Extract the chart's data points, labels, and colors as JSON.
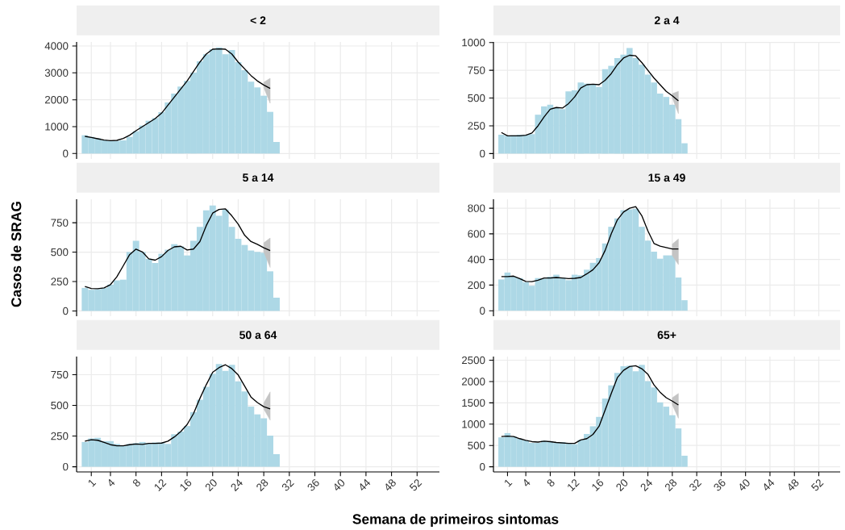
{
  "chart_data": [
    {
      "type": "bar",
      "title": "< 2",
      "x": [
        0,
        1,
        2,
        3,
        4,
        5,
        6,
        7,
        8,
        9,
        10,
        11,
        12,
        13,
        14,
        15,
        16,
        17,
        18,
        19,
        20,
        21,
        22,
        23,
        24,
        25,
        26,
        27,
        28,
        29,
        30
      ],
      "xlim": [
        -1.3,
        55.5
      ],
      "xticks": [
        1,
        4,
        8,
        12,
        16,
        20,
        24,
        28,
        32,
        36,
        40,
        44,
        48,
        52
      ],
      "ylim": [
        -200,
        4150
      ],
      "yticks": [
        0,
        1000,
        2000,
        3000,
        4000
      ],
      "tick_labels": "y",
      "grid": true,
      "series": [
        {
          "color": "#add8e6",
          "values": [
            680,
            620,
            570,
            500,
            470,
            470,
            490,
            620,
            830,
            1040,
            1220,
            1320,
            1540,
            1900,
            2230,
            2490,
            2700,
            3010,
            3430,
            3690,
            3880,
            3950,
            3690,
            3850,
            3400,
            3100,
            2670,
            2460,
            2150,
            1550,
            430
          ]
        },
        {
          "type": "line",
          "color": "#000000",
          "x": [
            0,
            1,
            2,
            3,
            4,
            5,
            6,
            7,
            8,
            9,
            10,
            11,
            12,
            13,
            14,
            15,
            16,
            17,
            18,
            19,
            20,
            21,
            22,
            23,
            24,
            25,
            26,
            27,
            28,
            29
          ],
          "values": [
            640,
            600,
            550,
            500,
            480,
            490,
            560,
            680,
            850,
            1000,
            1150,
            1300,
            1500,
            1800,
            2100,
            2400,
            2700,
            3050,
            3400,
            3700,
            3880,
            3890,
            3880,
            3700,
            3400,
            3150,
            2900,
            2700,
            2550,
            2420
          ],
          "lower": [
            null,
            null,
            null,
            null,
            null,
            null,
            null,
            null,
            null,
            null,
            null,
            null,
            null,
            null,
            null,
            null,
            null,
            null,
            null,
            null,
            null,
            null,
            null,
            null,
            null,
            null,
            null,
            null,
            2450,
            1870
          ],
          "upper": [
            null,
            null,
            null,
            null,
            null,
            null,
            null,
            null,
            null,
            null,
            null,
            null,
            null,
            null,
            null,
            null,
            null,
            null,
            null,
            null,
            null,
            null,
            null,
            null,
            null,
            null,
            null,
            null,
            2650,
            2800
          ]
        }
      ]
    },
    {
      "type": "bar",
      "title": "2 a 4",
      "x": [
        0,
        1,
        2,
        3,
        4,
        5,
        6,
        7,
        8,
        9,
        10,
        11,
        12,
        13,
        14,
        15,
        16,
        17,
        18,
        19,
        20,
        21,
        22,
        23,
        24,
        25,
        26,
        27,
        28,
        29,
        30
      ],
      "xlim": [
        -1.3,
        55.5
      ],
      "xticks": [
        1,
        4,
        8,
        12,
        16,
        20,
        24,
        28,
        32,
        36,
        40,
        44,
        48,
        52
      ],
      "ylim": [
        -48,
        1005
      ],
      "yticks": [
        0,
        250,
        500,
        750,
        1000
      ],
      "tick_labels": "y",
      "grid": true,
      "series": [
        {
          "color": "#add8e6",
          "values": [
            170,
            160,
            165,
            170,
            170,
            175,
            350,
            425,
            440,
            410,
            400,
            560,
            570,
            640,
            630,
            620,
            600,
            760,
            790,
            860,
            890,
            950,
            860,
            800,
            710,
            640,
            540,
            510,
            440,
            310,
            93
          ]
        },
        {
          "type": "line",
          "color": "#000000",
          "x": [
            0,
            1,
            2,
            3,
            4,
            5,
            6,
            7,
            8,
            9,
            10,
            11,
            12,
            13,
            14,
            15,
            16,
            17,
            18,
            19,
            20,
            21,
            22,
            23,
            24,
            25,
            26,
            27,
            28,
            29
          ],
          "values": [
            190,
            160,
            160,
            160,
            165,
            185,
            250,
            330,
            400,
            415,
            410,
            450,
            510,
            590,
            620,
            625,
            620,
            660,
            720,
            800,
            860,
            885,
            880,
            820,
            750,
            680,
            620,
            560,
            520,
            475
          ],
          "lower": [
            null,
            null,
            null,
            null,
            null,
            null,
            null,
            null,
            null,
            null,
            null,
            null,
            null,
            null,
            null,
            null,
            null,
            null,
            null,
            null,
            null,
            null,
            null,
            null,
            null,
            null,
            null,
            null,
            500,
            360
          ],
          "upper": [
            null,
            null,
            null,
            null,
            null,
            null,
            null,
            null,
            null,
            null,
            null,
            null,
            null,
            null,
            null,
            null,
            null,
            null,
            null,
            null,
            null,
            null,
            null,
            null,
            null,
            null,
            null,
            null,
            540,
            560
          ]
        }
      ]
    },
    {
      "type": "bar",
      "title": "5 a 14",
      "ylabel": "Casos de SRAG",
      "x": [
        0,
        1,
        2,
        3,
        4,
        5,
        6,
        7,
        8,
        9,
        10,
        11,
        12,
        13,
        14,
        15,
        16,
        17,
        18,
        19,
        20,
        21,
        22,
        23,
        24,
        25,
        26,
        27,
        28,
        29,
        30
      ],
      "xlim": [
        -1.3,
        55.5
      ],
      "xticks": [
        1,
        4,
        8,
        12,
        16,
        20,
        24,
        28,
        32,
        36,
        40,
        44,
        48,
        52
      ],
      "ylim": [
        -45,
        950
      ],
      "yticks": [
        0,
        250,
        500,
        750
      ],
      "tick_labels": "y",
      "grid": true,
      "series": [
        {
          "color": "#add8e6",
          "values": [
            196,
            180,
            184,
            196,
            224,
            260,
            266,
            502,
            597,
            502,
            443,
            408,
            486,
            521,
            568,
            550,
            472,
            597,
            715,
            856,
            896,
            809,
            863,
            715,
            613,
            561,
            514,
            502,
            495,
            337,
            113
          ]
        },
        {
          "type": "line",
          "color": "#000000",
          "x": [
            0,
            1,
            2,
            3,
            4,
            5,
            6,
            7,
            8,
            9,
            10,
            11,
            12,
            13,
            14,
            15,
            16,
            17,
            18,
            19,
            20,
            21,
            22,
            23,
            24,
            25,
            26,
            27,
            28,
            29
          ],
          "values": [
            208,
            191,
            189,
            196,
            224,
            290,
            384,
            479,
            526,
            502,
            443,
            432,
            462,
            514,
            545,
            550,
            519,
            526,
            590,
            726,
            832,
            863,
            868,
            809,
            738,
            644,
            590,
            566,
            538,
            514
          ],
          "lower": [
            null,
            null,
            null,
            null,
            null,
            null,
            null,
            null,
            null,
            null,
            null,
            null,
            null,
            null,
            null,
            null,
            null,
            null,
            null,
            null,
            null,
            null,
            null,
            null,
            null,
            null,
            null,
            null,
            500,
            370
          ],
          "upper": [
            null,
            null,
            null,
            null,
            null,
            null,
            null,
            null,
            null,
            null,
            null,
            null,
            null,
            null,
            null,
            null,
            null,
            null,
            null,
            null,
            null,
            null,
            null,
            null,
            null,
            null,
            null,
            null,
            580,
            620
          ]
        }
      ]
    },
    {
      "type": "bar",
      "title": "15 a 49",
      "x": [
        0,
        1,
        2,
        3,
        4,
        5,
        6,
        7,
        8,
        9,
        10,
        11,
        12,
        13,
        14,
        15,
        16,
        17,
        18,
        19,
        20,
        21,
        22,
        23,
        24,
        25,
        26,
        27,
        28,
        29,
        30
      ],
      "xlim": [
        -1.3,
        55.5
      ],
      "xticks": [
        1,
        4,
        8,
        12,
        16,
        20,
        24,
        28,
        32,
        36,
        40,
        44,
        48,
        52
      ],
      "ylim": [
        -43,
        870
      ],
      "yticks": [
        0,
        200,
        400,
        600,
        800
      ],
      "tick_labels": "y",
      "grid": true,
      "series": [
        {
          "color": "#add8e6",
          "values": [
            244,
            298,
            266,
            255,
            223,
            195,
            255,
            251,
            266,
            281,
            259,
            238,
            281,
            277,
            320,
            374,
            411,
            525,
            655,
            720,
            785,
            791,
            796,
            655,
            547,
            461,
            406,
            432,
            432,
            259,
            82
          ]
        },
        {
          "type": "line",
          "color": "#000000",
          "x": [
            0,
            1,
            2,
            3,
            4,
            5,
            6,
            7,
            8,
            9,
            10,
            11,
            12,
            13,
            14,
            15,
            16,
            17,
            18,
            19,
            20,
            21,
            22,
            23,
            24,
            25,
            26,
            27,
            28,
            29
          ],
          "values": [
            266,
            266,
            270,
            251,
            229,
            227,
            238,
            255,
            255,
            259,
            255,
            251,
            253,
            259,
            288,
            320,
            374,
            471,
            601,
            709,
            770,
            800,
            813,
            742,
            623,
            525,
            504,
            493,
            482,
            482
          ],
          "lower": [
            null,
            null,
            null,
            null,
            null,
            null,
            null,
            null,
            null,
            null,
            null,
            null,
            null,
            null,
            null,
            null,
            null,
            null,
            null,
            null,
            null,
            null,
            null,
            null,
            null,
            null,
            null,
            null,
            430,
            360
          ],
          "upper": [
            null,
            null,
            null,
            null,
            null,
            null,
            null,
            null,
            null,
            null,
            null,
            null,
            null,
            null,
            null,
            null,
            null,
            null,
            null,
            null,
            null,
            null,
            null,
            null,
            null,
            null,
            null,
            null,
            520,
            560
          ]
        }
      ]
    },
    {
      "type": "bar",
      "title": "50 a 64",
      "xlabel": "Semana de primeiros sintomas",
      "x": [
        0,
        1,
        2,
        3,
        4,
        5,
        6,
        7,
        8,
        9,
        10,
        11,
        12,
        13,
        14,
        15,
        16,
        17,
        18,
        19,
        20,
        21,
        22,
        23,
        24,
        25,
        26,
        27,
        28,
        29,
        30
      ],
      "xlim": [
        -1.3,
        55.5
      ],
      "xticks": [
        1,
        4,
        8,
        12,
        16,
        20,
        24,
        28,
        32,
        36,
        40,
        44,
        48,
        52
      ],
      "ylim": [
        -42,
        898
      ],
      "yticks": [
        0,
        250,
        500,
        750
      ],
      "grid": true,
      "series": [
        {
          "color": "#add8e6",
          "values": [
            202,
            231,
            236,
            209,
            209,
            186,
            175,
            186,
            193,
            202,
            193,
            198,
            198,
            186,
            265,
            287,
            332,
            445,
            546,
            651,
            759,
            838,
            781,
            831,
            696,
            613,
            490,
            427,
            395,
            254,
            103
          ]
        },
        {
          "type": "line",
          "color": "#000000",
          "x": [
            0,
            1,
            2,
            3,
            4,
            5,
            6,
            7,
            8,
            9,
            10,
            11,
            12,
            13,
            14,
            15,
            16,
            17,
            18,
            19,
            20,
            21,
            22,
            23,
            24,
            25,
            26,
            27,
            28,
            29
          ],
          "values": [
            209,
            220,
            216,
            198,
            180,
            171,
            171,
            180,
            186,
            182,
            191,
            191,
            193,
            209,
            243,
            287,
            344,
            433,
            557,
            669,
            770,
            808,
            831,
            800,
            748,
            658,
            568,
            523,
            490,
            472
          ],
          "lower": [
            null,
            null,
            null,
            null,
            null,
            null,
            null,
            null,
            null,
            null,
            null,
            null,
            null,
            null,
            null,
            null,
            null,
            null,
            null,
            null,
            null,
            null,
            null,
            null,
            null,
            null,
            null,
            null,
            470,
            380
          ],
          "upper": [
            null,
            null,
            null,
            null,
            null,
            null,
            null,
            null,
            null,
            null,
            null,
            null,
            null,
            null,
            null,
            null,
            null,
            null,
            null,
            null,
            null,
            null,
            null,
            null,
            null,
            null,
            null,
            null,
            520,
            610
          ]
        }
      ]
    },
    {
      "type": "bar",
      "title": "65+",
      "x": [
        0,
        1,
        2,
        3,
        4,
        5,
        6,
        7,
        8,
        9,
        10,
        11,
        12,
        13,
        14,
        15,
        16,
        17,
        18,
        19,
        20,
        21,
        22,
        23,
        24,
        25,
        26,
        27,
        28,
        29,
        30
      ],
      "xlim": [
        -1.3,
        55.5
      ],
      "xticks": [
        1,
        4,
        8,
        12,
        16,
        20,
        24,
        28,
        32,
        36,
        40,
        44,
        48,
        52
      ],
      "ylim": [
        -120,
        2585
      ],
      "yticks": [
        0,
        500,
        1000,
        1500,
        2000,
        2500
      ],
      "grid": true,
      "series": [
        {
          "color": "#add8e6",
          "values": [
            690,
            790,
            710,
            660,
            620,
            560,
            560,
            610,
            600,
            560,
            580,
            550,
            530,
            630,
            770,
            950,
            1170,
            1600,
            1910,
            2200,
            2360,
            2370,
            2240,
            2390,
            2010,
            1860,
            1510,
            1410,
            1210,
            900,
            260
          ]
        },
        {
          "type": "line",
          "color": "#000000",
          "x": [
            0,
            1,
            2,
            3,
            4,
            5,
            6,
            7,
            8,
            9,
            10,
            11,
            12,
            13,
            14,
            15,
            16,
            17,
            18,
            19,
            20,
            21,
            22,
            23,
            24,
            25,
            26,
            27,
            28,
            29
          ],
          "values": [
            710,
            720,
            710,
            660,
            620,
            590,
            580,
            600,
            590,
            570,
            560,
            550,
            550,
            630,
            660,
            760,
            950,
            1330,
            1720,
            2090,
            2260,
            2350,
            2370,
            2300,
            2170,
            1920,
            1750,
            1620,
            1540,
            1450
          ],
          "lower": [
            null,
            null,
            null,
            null,
            null,
            null,
            null,
            null,
            null,
            null,
            null,
            null,
            null,
            null,
            null,
            null,
            null,
            null,
            null,
            null,
            null,
            null,
            null,
            null,
            null,
            null,
            null,
            null,
            1450,
            1140
          ],
          "upper": [
            null,
            null,
            null,
            null,
            null,
            null,
            null,
            null,
            null,
            null,
            null,
            null,
            null,
            null,
            null,
            null,
            null,
            null,
            null,
            null,
            null,
            null,
            null,
            null,
            null,
            null,
            null,
            null,
            1620,
            1720
          ]
        }
      ]
    }
  ]
}
